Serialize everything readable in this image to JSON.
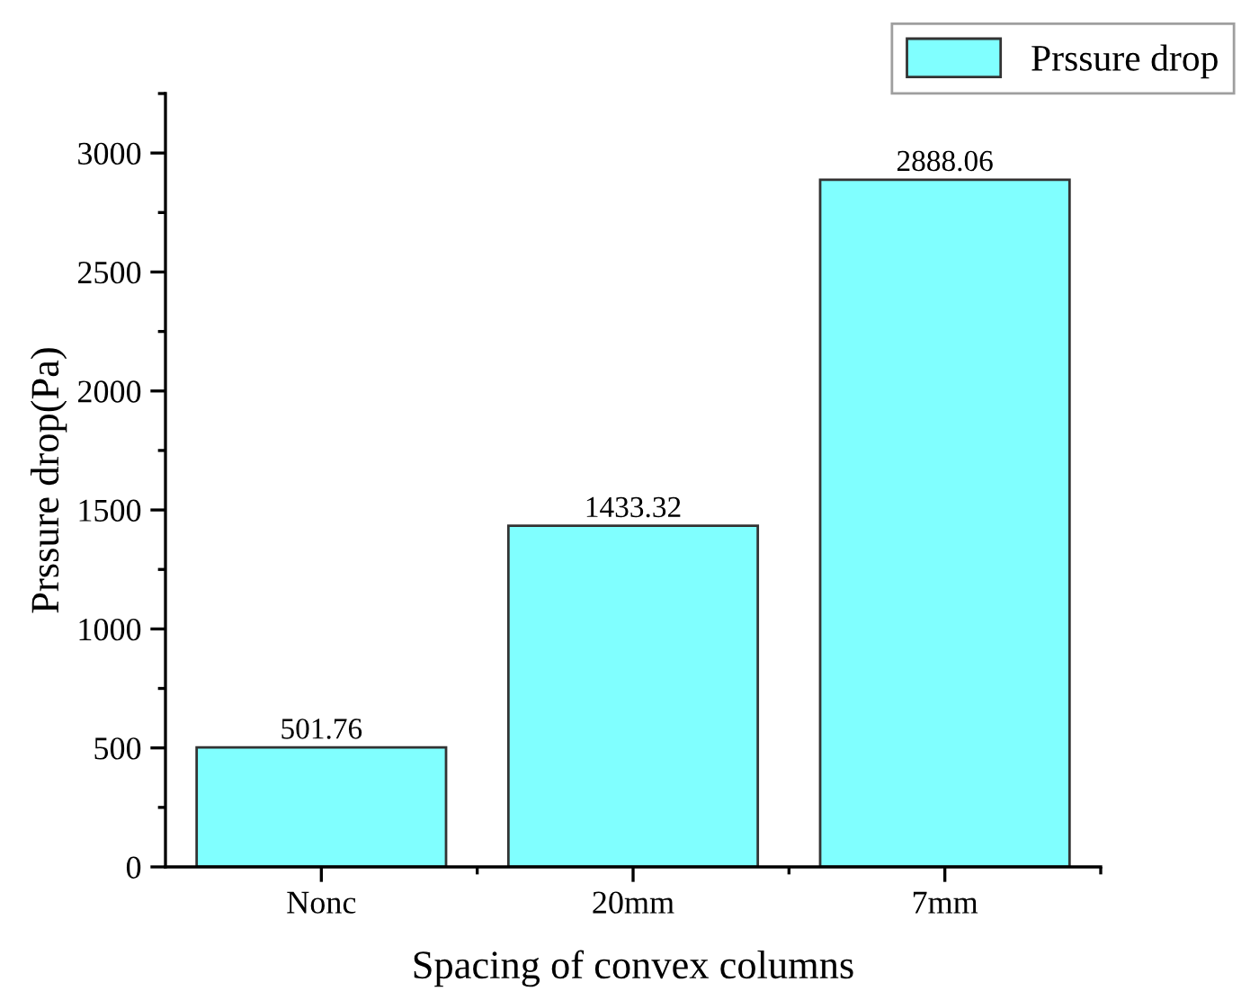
{
  "chart_data": {
    "type": "bar",
    "xlabel": "Spacing of convex columns",
    "ylabel": "Prssure drop(Pa)",
    "categories": [
      "Nonc",
      "20mm",
      "7mm"
    ],
    "series": [
      {
        "name": "Prssure drop",
        "color": "#80ffff",
        "values": [
          501.76,
          1433.32,
          2888.06
        ]
      }
    ],
    "ylim": [
      0,
      3250
    ],
    "yticks": [
      0,
      500,
      1000,
      1500,
      2000,
      2500,
      3000
    ],
    "data_labels": true,
    "grid": false,
    "legend": "top right"
  }
}
